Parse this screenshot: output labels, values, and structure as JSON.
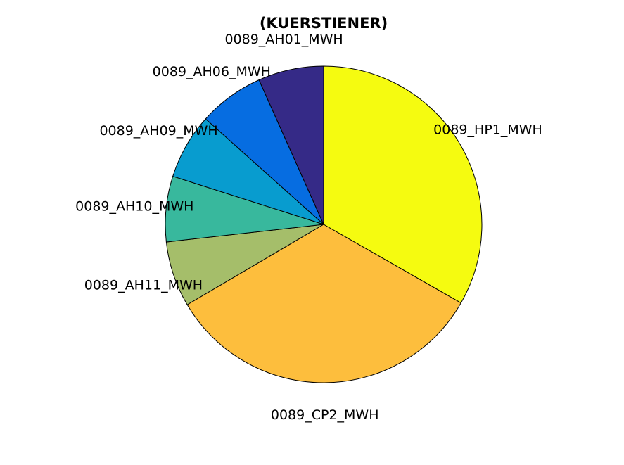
{
  "chart_data": {
    "type": "pie",
    "title": "(KUERSTIENER)",
    "direction": "clockwise",
    "start": "top",
    "slices": [
      {
        "label": "0089_HP1_MWH",
        "value": 33.3,
        "color": "#f5fb10"
      },
      {
        "label": "0089_CP2_MWH",
        "value": 33.3,
        "color": "#fdbe3d"
      },
      {
        "label": "0089_AH11_MWH",
        "value": 6.7,
        "color": "#a5be6a"
      },
      {
        "label": "0089_AH10_MWH",
        "value": 6.7,
        "color": "#38b89d"
      },
      {
        "label": "0089_AH09_MWH",
        "value": 6.7,
        "color": "#089ccf"
      },
      {
        "label": "0089_AH06_MWH",
        "value": 6.7,
        "color": "#066de1"
      },
      {
        "label": "0089_AH01_MWH",
        "value": 6.7,
        "color": "#352a87"
      }
    ]
  }
}
